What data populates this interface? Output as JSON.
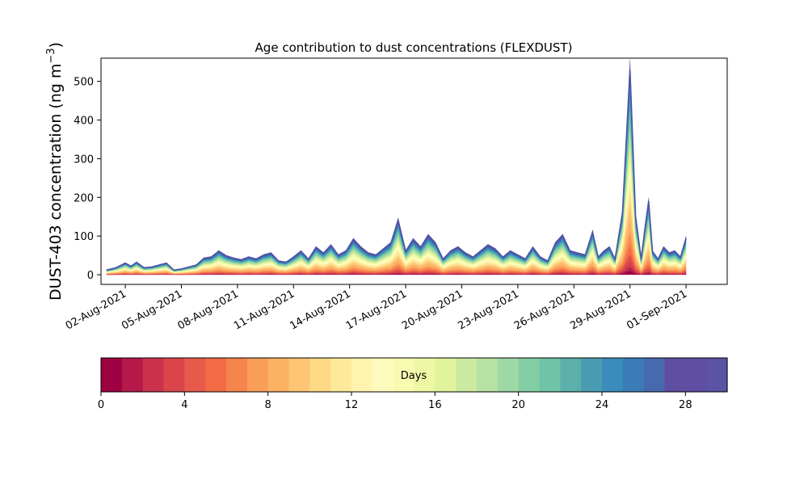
{
  "chart_data": {
    "type": "area",
    "title": "Age contribution to dust concentrations (FLEXDUST)",
    "ylabel_main": "DUST-403 concentration (ng m",
    "ylabel_sup": "−3",
    "ylabel_close": ")",
    "xlabel": "",
    "ylim": [
      -25,
      560
    ],
    "yticks": [
      0,
      100,
      200,
      300,
      400,
      500
    ],
    "xlim": [
      -1.3,
      32.2
    ],
    "xticks": [
      {
        "x": 0,
        "label": "02-Aug-2021"
      },
      {
        "x": 3,
        "label": "05-Aug-2021"
      },
      {
        "x": 6,
        "label": "08-Aug-2021"
      },
      {
        "x": 9,
        "label": "11-Aug-2021"
      },
      {
        "x": 12,
        "label": "14-Aug-2021"
      },
      {
        "x": 15,
        "label": "17-Aug-2021"
      },
      {
        "x": 18,
        "label": "20-Aug-2021"
      },
      {
        "x": 21,
        "label": "23-Aug-2021"
      },
      {
        "x": 24,
        "label": "26-Aug-2021"
      },
      {
        "x": 27,
        "label": "29-Aug-2021"
      },
      {
        "x": 30,
        "label": "01-Sep-2021"
      }
    ],
    "x_days_since_02Aug": [
      -1,
      -0.5,
      0,
      0.3,
      0.6,
      1,
      1.4,
      1.8,
      2.2,
      2.6,
      3,
      3.4,
      3.8,
      4.2,
      4.6,
      5,
      5.4,
      5.8,
      6.2,
      6.6,
      7,
      7.4,
      7.8,
      8.2,
      8.6,
      9,
      9.4,
      9.8,
      10.2,
      10.6,
      11,
      11.4,
      11.8,
      12.2,
      12.6,
      13,
      13.4,
      13.8,
      14.2,
      14.6,
      15,
      15.4,
      15.8,
      16.2,
      16.6,
      17,
      17.4,
      17.8,
      18.2,
      18.6,
      19,
      19.4,
      19.8,
      20.2,
      20.6,
      21,
      21.4,
      21.8,
      22.2,
      22.6,
      23,
      23.4,
      23.8,
      24.2,
      24.6,
      25,
      25.3,
      25.6,
      25.9,
      26.2,
      26.6,
      27,
      27.3,
      27.6,
      27.8,
      28,
      28.2,
      28.5,
      28.8,
      29.1,
      29.4,
      29.7,
      30
    ],
    "total": [
      12,
      18,
      30,
      22,
      32,
      18,
      20,
      25,
      30,
      12,
      15,
      20,
      25,
      42,
      45,
      60,
      48,
      42,
      38,
      45,
      40,
      50,
      55,
      35,
      32,
      45,
      60,
      40,
      70,
      55,
      75,
      50,
      60,
      90,
      70,
      55,
      50,
      65,
      80,
      140,
      60,
      90,
      70,
      100,
      80,
      40,
      60,
      70,
      55,
      45,
      60,
      75,
      65,
      45,
      60,
      50,
      40,
      70,
      45,
      35,
      80,
      100,
      60,
      55,
      50,
      110,
      45,
      60,
      70,
      40,
      160,
      530,
      150,
      40,
      120,
      190,
      60,
      40,
      70,
      55,
      60,
      45,
      95
    ],
    "bands": {
      "colors": [
        "#9e0142",
        "#b9254b",
        "#d53e4f",
        "#e04c4a",
        "#f46d43",
        "#f68d52",
        "#fdae61",
        "#fdc173",
        "#fee08b",
        "#fef0a7",
        "#ffffbf",
        "#f2faac",
        "#e6f598",
        "#c4e79f",
        "#abdda4",
        "#86cfa5",
        "#66c2a5",
        "#4ba2b2",
        "#3288bd",
        "#4565ac",
        "#5e4fa2"
      ],
      "fractions": [
        0.02,
        0.02,
        0.03,
        0.03,
        0.05,
        0.06,
        0.07,
        0.07,
        0.07,
        0.06,
        0.05,
        0.05,
        0.05,
        0.05,
        0.05,
        0.05,
        0.05,
        0.05,
        0.05,
        0.05,
        0.07
      ]
    },
    "colorbar": {
      "label": "Days",
      "min": 0,
      "max": 30,
      "ticks": [
        0,
        4,
        8,
        12,
        16,
        20,
        24,
        28
      ],
      "colors": [
        "#9e0142",
        "#b61849",
        "#cc314b",
        "#da4549",
        "#e6594b",
        "#f26b44",
        "#f5844d",
        "#f99e57",
        "#fcb262",
        "#fdc574",
        "#fdd986",
        "#fee99b",
        "#fff3ad",
        "#fffbbf",
        "#f8fbb0",
        "#eef8a4",
        "#e1f39b",
        "#cbe99f",
        "#b6e2a2",
        "#9ed8a4",
        "#83cda5",
        "#6fc3a6",
        "#5bb0ab",
        "#4a9cb3",
        "#3a8dbb",
        "#3a7bb8",
        "#4769b0",
        "#5e4fa2",
        "#5f4ea3",
        "#5b53a4"
      ]
    }
  }
}
